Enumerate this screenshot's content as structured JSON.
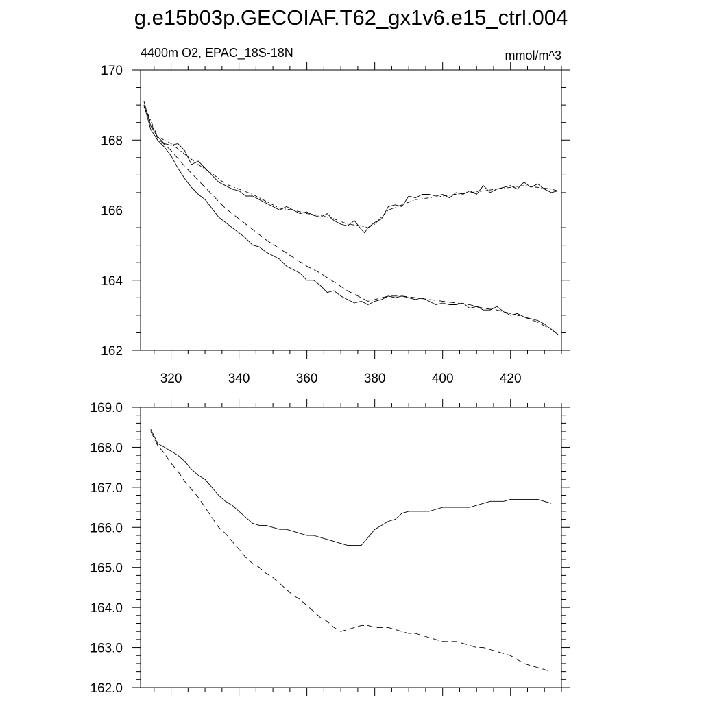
{
  "title": "g.e15b03p.GECOIAF.T62_gx1v6.e15_ctrl.004",
  "chart_data": [
    {
      "type": "line",
      "subtitle_left": "4400m O2, EPAC_18S-18N",
      "subtitle_right": "mmol/m^3",
      "xlim": [
        311,
        435
      ],
      "ylim": [
        162,
        170
      ],
      "xticks": [
        320,
        340,
        360,
        380,
        400,
        420
      ],
      "xtick_labels": [
        "320",
        "340",
        "360",
        "380",
        "400",
        "420"
      ],
      "yticks": [
        162,
        164,
        166,
        168,
        170
      ],
      "ytick_labels": [
        "162",
        "164",
        "166",
        "168",
        "170"
      ],
      "series": [
        {
          "style": "solid",
          "x": [
            312,
            314,
            316,
            318,
            320,
            322,
            324,
            326,
            328,
            330,
            332,
            334,
            336,
            338,
            340,
            342,
            344,
            346,
            348,
            350,
            352,
            354,
            356,
            358,
            360,
            362,
            364,
            366,
            368,
            370,
            372,
            374,
            376,
            377,
            378,
            380,
            382,
            384,
            386,
            388,
            390,
            392,
            394,
            396,
            398,
            400,
            402,
            404,
            406,
            408,
            410,
            412,
            414,
            416,
            418,
            420,
            422,
            424,
            426,
            428,
            430,
            432,
            434
          ],
          "y": [
            169.1,
            168.4,
            168.1,
            167.9,
            167.85,
            167.9,
            167.7,
            167.3,
            167.4,
            167.2,
            167.0,
            166.8,
            166.7,
            166.6,
            166.55,
            166.4,
            166.4,
            166.3,
            166.2,
            166.1,
            166.0,
            166.1,
            166.0,
            165.9,
            165.95,
            165.85,
            165.8,
            165.9,
            165.7,
            165.6,
            165.55,
            165.7,
            165.45,
            165.35,
            165.5,
            165.65,
            165.75,
            166.1,
            166.15,
            166.1,
            166.4,
            166.35,
            166.45,
            166.45,
            166.4,
            166.45,
            166.35,
            166.5,
            166.45,
            166.55,
            166.45,
            166.7,
            166.5,
            166.6,
            166.65,
            166.7,
            166.6,
            166.8,
            166.65,
            166.75,
            166.6,
            166.5,
            166.55
          ]
        },
        {
          "style": "dash-dot",
          "x": [
            312,
            316,
            320,
            324,
            328,
            332,
            336,
            340,
            344,
            348,
            352,
            356,
            360,
            364,
            368,
            372,
            376,
            378,
            380,
            384,
            388,
            392,
            396,
            400,
            404,
            408,
            412,
            416,
            420,
            424,
            428,
            432,
            434
          ],
          "y": [
            169.0,
            168.1,
            167.9,
            167.6,
            167.3,
            167.05,
            166.75,
            166.6,
            166.45,
            166.25,
            166.05,
            166.0,
            165.9,
            165.85,
            165.75,
            165.6,
            165.55,
            165.5,
            165.6,
            166.0,
            166.15,
            166.3,
            166.35,
            166.4,
            166.45,
            166.5,
            166.55,
            166.6,
            166.65,
            166.7,
            166.65,
            166.6,
            166.55
          ]
        },
        {
          "style": "solid",
          "x": [
            312,
            314,
            316,
            318,
            320,
            322,
            324,
            326,
            328,
            330,
            332,
            334,
            336,
            338,
            340,
            342,
            344,
            346,
            348,
            350,
            352,
            354,
            356,
            358,
            360,
            362,
            364,
            366,
            368,
            370,
            372,
            374,
            376,
            378,
            380,
            382,
            384,
            386,
            388,
            390,
            392,
            394,
            396,
            398,
            400,
            402,
            404,
            406,
            408,
            410,
            412,
            414,
            416,
            418,
            420,
            422,
            424,
            426,
            428,
            430,
            432,
            434
          ],
          "y": [
            169.0,
            168.3,
            168.0,
            167.8,
            167.55,
            167.2,
            166.9,
            166.65,
            166.45,
            166.3,
            166.05,
            165.8,
            165.65,
            165.5,
            165.35,
            165.2,
            165.0,
            164.95,
            164.8,
            164.7,
            164.6,
            164.4,
            164.3,
            164.2,
            164.0,
            164.0,
            163.85,
            163.65,
            163.7,
            163.55,
            163.45,
            163.35,
            163.4,
            163.3,
            163.4,
            163.45,
            163.55,
            163.5,
            163.55,
            163.5,
            163.45,
            163.5,
            163.4,
            163.3,
            163.35,
            163.3,
            163.3,
            163.35,
            163.2,
            163.25,
            163.15,
            163.15,
            163.25,
            163.1,
            163.0,
            163.05,
            162.95,
            162.9,
            162.85,
            162.75,
            162.6,
            162.45
          ]
        },
        {
          "style": "dash",
          "x": [
            312,
            316,
            320,
            324,
            328,
            332,
            336,
            340,
            344,
            348,
            352,
            356,
            360,
            364,
            368,
            372,
            376,
            378,
            380,
            384,
            388,
            392,
            396,
            400,
            404,
            408,
            412,
            416,
            420,
            424,
            428,
            432,
            434
          ],
          "y": [
            168.95,
            168.05,
            167.7,
            167.25,
            166.85,
            166.45,
            166.05,
            165.75,
            165.45,
            165.15,
            164.9,
            164.65,
            164.4,
            164.2,
            163.95,
            163.7,
            163.5,
            163.4,
            163.45,
            163.55,
            163.55,
            163.5,
            163.45,
            163.4,
            163.35,
            163.3,
            163.2,
            163.15,
            163.05,
            162.95,
            162.8,
            162.6,
            162.45
          ]
        }
      ]
    },
    {
      "type": "line",
      "xlim": [
        311,
        435
      ],
      "ylim": [
        162,
        169
      ],
      "xticks": [
        320,
        340,
        360,
        380,
        400,
        420
      ],
      "yticks": [
        162,
        163,
        164,
        165,
        166,
        167,
        168,
        169
      ],
      "ytick_labels": [
        "162.0",
        "163.0",
        "164.0",
        "165.0",
        "166.0",
        "167.0",
        "168.0",
        "169.0"
      ],
      "series": [
        {
          "style": "solid",
          "x": [
            314,
            316,
            318,
            320,
            322,
            324,
            326,
            328,
            330,
            332,
            334,
            336,
            338,
            340,
            342,
            344,
            346,
            348,
            350,
            352,
            354,
            356,
            358,
            360,
            362,
            364,
            366,
            368,
            370,
            372,
            374,
            376,
            378,
            380,
            382,
            384,
            386,
            388,
            390,
            392,
            394,
            396,
            398,
            400,
            402,
            404,
            406,
            408,
            410,
            412,
            414,
            416,
            418,
            420,
            422,
            424,
            426,
            428,
            430,
            432
          ],
          "y": [
            168.45,
            168.1,
            168.0,
            167.9,
            167.8,
            167.65,
            167.45,
            167.3,
            167.2,
            167.0,
            166.8,
            166.65,
            166.55,
            166.4,
            166.25,
            166.1,
            166.05,
            166.05,
            166.0,
            165.95,
            165.95,
            165.9,
            165.85,
            165.8,
            165.8,
            165.75,
            165.7,
            165.65,
            165.6,
            165.55,
            165.55,
            165.55,
            165.75,
            165.95,
            166.05,
            166.15,
            166.2,
            166.35,
            166.4,
            166.4,
            166.4,
            166.4,
            166.45,
            166.5,
            166.5,
            166.5,
            166.5,
            166.5,
            166.55,
            166.6,
            166.65,
            166.65,
            166.65,
            166.7,
            166.7,
            166.7,
            166.7,
            166.7,
            166.65,
            166.6
          ]
        },
        {
          "style": "dash",
          "x": [
            314,
            316,
            318,
            320,
            322,
            324,
            326,
            328,
            330,
            332,
            334,
            336,
            338,
            340,
            342,
            344,
            346,
            348,
            350,
            352,
            354,
            356,
            358,
            360,
            362,
            364,
            366,
            368,
            370,
            372,
            374,
            376,
            378,
            380,
            382,
            384,
            386,
            388,
            390,
            392,
            394,
            396,
            398,
            400,
            402,
            404,
            406,
            408,
            410,
            412,
            414,
            416,
            418,
            420,
            422,
            424,
            426,
            428,
            430,
            432
          ],
          "y": [
            168.4,
            168.05,
            167.85,
            167.6,
            167.4,
            167.15,
            166.95,
            166.75,
            166.5,
            166.25,
            166.0,
            165.85,
            165.65,
            165.45,
            165.25,
            165.1,
            165.0,
            164.85,
            164.75,
            164.6,
            164.45,
            164.3,
            164.2,
            164.05,
            163.9,
            163.75,
            163.65,
            163.5,
            163.4,
            163.45,
            163.5,
            163.55,
            163.55,
            163.5,
            163.5,
            163.5,
            163.45,
            163.4,
            163.35,
            163.35,
            163.3,
            163.25,
            163.2,
            163.15,
            163.15,
            163.15,
            163.1,
            163.05,
            163.0,
            163.0,
            162.95,
            162.9,
            162.85,
            162.8,
            162.7,
            162.6,
            162.55,
            162.5,
            162.45,
            162.4
          ]
        }
      ]
    }
  ]
}
